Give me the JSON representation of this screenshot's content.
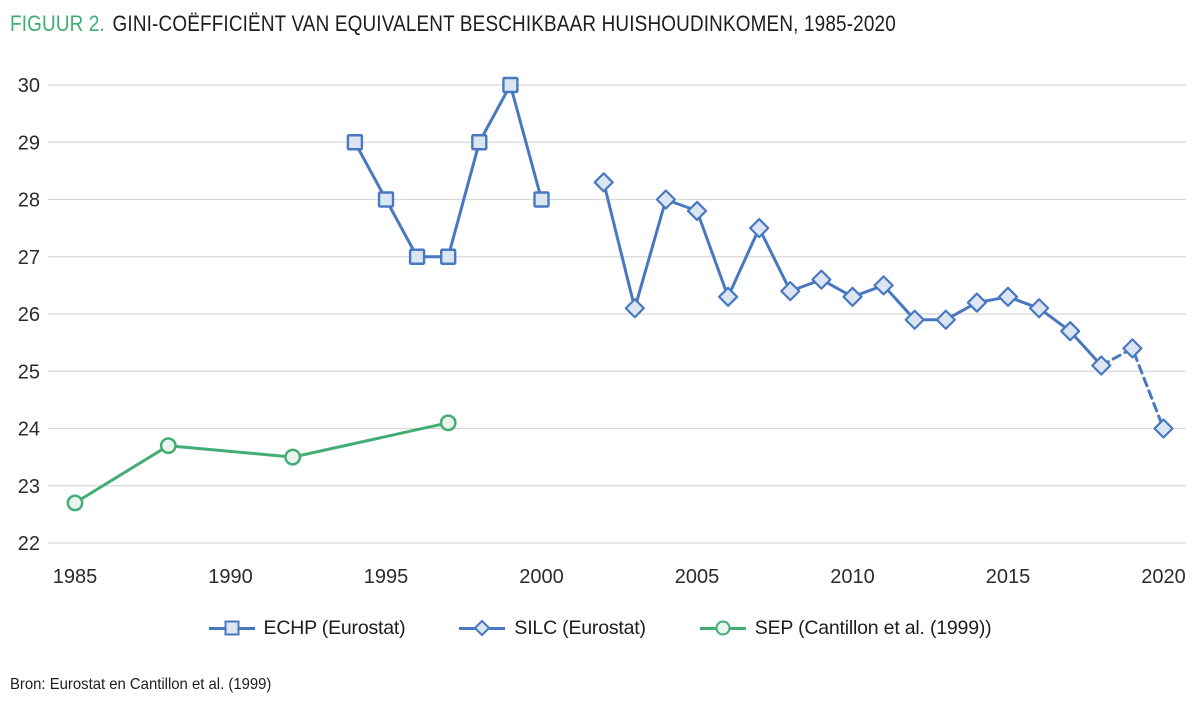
{
  "figure": {
    "title_prefix": "FIGUUR 2.",
    "title_text": "GINI-COËFFICIËNT VAN EQUIVALENT BESCHIKBAAR HUISHOUDINKOMEN, 1985-2020",
    "source": "Bron: Eurostat en Cantillon et al. (1999)"
  },
  "colors": {
    "accent_green": "#3cad72",
    "series_blue": "#4878c0",
    "series_blue_fill": "#dce6f2",
    "series_green": "#44ad74",
    "series_green_fill": "#e9f5ee",
    "grid": "#d8d8d8",
    "axis_text": "#2b2b2b",
    "title_text": "#1d1d1b"
  },
  "chart_data": {
    "type": "line",
    "title": "GINI-COËFFICIËNT VAN EQUIVALENT BESCHIKBAAR HUISHOUDINKOMEN, 1985-2020",
    "xlabel": "",
    "ylabel": "",
    "xlim": [
      1984,
      2021
    ],
    "ylim": [
      22,
      30.5
    ],
    "grid": "horizontal",
    "legend_position": "bottom",
    "y_ticks": [
      22,
      23,
      24,
      25,
      26,
      27,
      28,
      29,
      30
    ],
    "x_ticks": [
      1985,
      1990,
      1995,
      2000,
      2005,
      2010,
      2015,
      2020
    ],
    "series": [
      {
        "id": "echp",
        "name": "ECHP (Eurostat)",
        "marker": "square",
        "color": "#4878c0",
        "fill": "#dce6f2",
        "x": [
          1994,
          1995,
          1996,
          1997,
          1998,
          1999,
          2000
        ],
        "values": [
          29,
          28,
          27,
          27,
          29,
          30,
          28
        ]
      },
      {
        "id": "silc",
        "name": "SILC (Eurostat)",
        "marker": "diamond",
        "color": "#4878c0",
        "fill": "#dce6f2",
        "x": [
          2002,
          2003,
          2004,
          2005,
          2006,
          2007,
          2008,
          2009,
          2010,
          2011,
          2012,
          2013,
          2014,
          2015,
          2016,
          2017,
          2018,
          2019,
          2020
        ],
        "values": [
          28.3,
          26.1,
          28.0,
          27.8,
          26.3,
          27.5,
          26.4,
          26.6,
          26.3,
          26.5,
          25.9,
          25.9,
          26.2,
          26.3,
          26.1,
          25.7,
          25.1,
          25.4,
          24.0
        ],
        "dashed_from_x": 2018
      },
      {
        "id": "sep",
        "name": "SEP (Cantillon et al. (1999))",
        "marker": "circle",
        "color": "#44ad74",
        "fill": "#e9f5ee",
        "x": [
          1985,
          1988,
          1992,
          1997
        ],
        "values": [
          22.7,
          23.7,
          23.5,
          24.1
        ]
      }
    ]
  }
}
